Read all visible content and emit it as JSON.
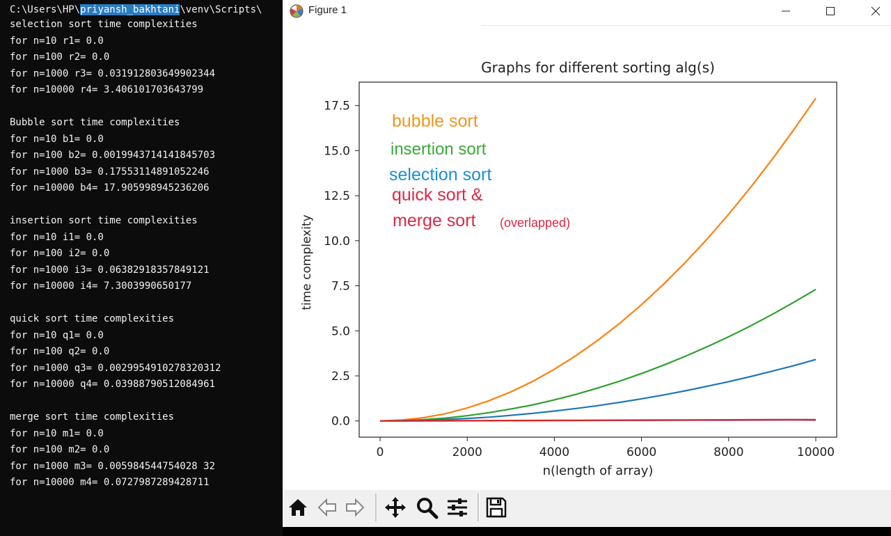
{
  "terminal": {
    "path_prefix": "C:\\Users\\HP\\",
    "path_highlight": "priyansh_bakhtani",
    "path_suffix": "\\venv\\Scripts\\",
    "lines": [
      "selection sort time complexities",
      "for n=10 r1= 0.0",
      "for n=100 r2= 0.0",
      "for n=1000 r3= 0.031912803649902344",
      "for n=10000 r4= 3.406101703643799",
      "",
      "Bubble sort time complexities",
      "for n=10 b1= 0.0",
      "for n=100 b2= 0.0019943714141845703",
      "for n=1000 b3= 0.17553114891052246",
      "for n=10000 b4= 17.905998945236206",
      "",
      "insertion sort time complexities",
      "for n=10 i1= 0.0",
      "for n=100 i2= 0.0",
      "for n=1000 i3= 0.06382918357849121",
      "for n=10000 i4= 7.3003990650177",
      "",
      "quick sort time complexities",
      "for n=10 q1= 0.0",
      "for n=100 q2= 0.0",
      "for n=1000 q3= 0.0029954910278320312",
      "for n=10000 q4= 0.03988790512084961",
      "",
      "merge sort time complexities",
      "for n=10 m1= 0.0",
      "for n=100 m2= 0.0",
      "for n=1000 m3= 0.005984544754028 32",
      "for n=10000 m4= 0.0727987289428711"
    ]
  },
  "window": {
    "title": "Figure 1",
    "app_icon": "matplotlib-figure-icon",
    "controls": [
      "minimize-icon",
      "maximize-icon",
      "close-icon"
    ]
  },
  "chart_data": {
    "type": "line",
    "title": "Graphs for different sorting alg(s)",
    "xlabel": "n(length of array)",
    "ylabel": "time complexity",
    "xlim": [
      -480,
      10480
    ],
    "ylim": [
      -0.9,
      18.8
    ],
    "xticks": [
      0,
      2000,
      4000,
      6000,
      8000,
      10000
    ],
    "yticks": [
      0.0,
      2.5,
      5.0,
      7.5,
      10.0,
      12.5,
      15.0,
      17.5
    ],
    "ytick_labels": [
      "0.0",
      "2.5",
      "5.0",
      "7.5",
      "10.0",
      "12.5",
      "15.0",
      "17.5"
    ],
    "grid": false,
    "x": [
      0,
      500,
      1000,
      1500,
      2000,
      2500,
      3000,
      3500,
      4000,
      4500,
      5000,
      5500,
      6000,
      6500,
      7000,
      7500,
      8000,
      8500,
      9000,
      9500,
      10000
    ],
    "series": [
      {
        "color": "#ff7f0e",
        "values": [
          0,
          0.05,
          0.18,
          0.4,
          0.72,
          1.12,
          1.61,
          2.19,
          2.87,
          3.63,
          4.48,
          5.42,
          6.45,
          7.57,
          8.78,
          10.08,
          11.47,
          12.95,
          14.52,
          16.18,
          17.91
        ]
      },
      {
        "color": "#2ca02c",
        "values": [
          0,
          0.02,
          0.07,
          0.16,
          0.29,
          0.46,
          0.66,
          0.89,
          1.17,
          1.48,
          1.83,
          2.21,
          2.63,
          3.09,
          3.58,
          4.11,
          4.67,
          5.27,
          5.91,
          6.59,
          7.3
        ]
      },
      {
        "color": "#1f77b4",
        "values": [
          0,
          0.01,
          0.03,
          0.08,
          0.14,
          0.21,
          0.31,
          0.42,
          0.55,
          0.69,
          0.85,
          1.03,
          1.23,
          1.44,
          1.67,
          1.92,
          2.18,
          2.46,
          2.76,
          3.07,
          3.41
        ]
      },
      {
        "color": "#9467bd",
        "values": [
          0,
          0.001,
          0.003,
          0.005,
          0.008,
          0.011,
          0.014,
          0.017,
          0.02,
          0.023,
          0.026,
          0.029,
          0.032,
          0.035,
          0.038,
          0.041,
          0.044,
          0.047,
          0.05,
          0.053,
          0.04
        ]
      },
      {
        "color": "#d62728",
        "values": [
          0,
          0.003,
          0.006,
          0.01,
          0.014,
          0.018,
          0.022,
          0.026,
          0.03,
          0.034,
          0.038,
          0.042,
          0.046,
          0.05,
          0.054,
          0.058,
          0.062,
          0.065,
          0.068,
          0.07,
          0.073
        ]
      }
    ],
    "annotations": [
      {
        "text": "bubble sort",
        "color": "#f0961e"
      },
      {
        "text": "insertion sort",
        "color": "#3aa93a"
      },
      {
        "text": "selection sort",
        "color": "#1a8fd8"
      },
      {
        "text": "quick sort &",
        "color": "#dc2846"
      },
      {
        "text": "merge sort",
        "color": "#dc2846"
      },
      {
        "text": "(overlapped)",
        "color": "#dc2846"
      }
    ]
  },
  "toolbar": {
    "buttons": [
      {
        "name": "home-button",
        "icon": "home-icon"
      },
      {
        "name": "back-button",
        "icon": "arrow-left-icon"
      },
      {
        "name": "forward-button",
        "icon": "arrow-right-icon"
      },
      {
        "name": "pan-button",
        "icon": "move-icon"
      },
      {
        "name": "zoom-button",
        "icon": "magnifier-icon"
      },
      {
        "name": "configure-subplots-button",
        "icon": "sliders-icon"
      },
      {
        "name": "save-button",
        "icon": "floppy-disk-icon"
      }
    ]
  }
}
